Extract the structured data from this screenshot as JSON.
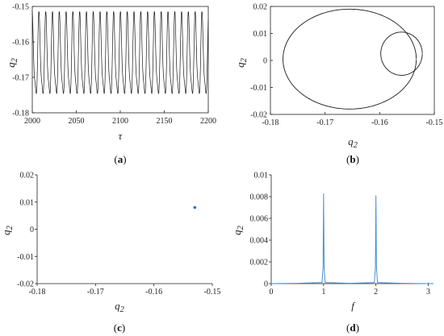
{
  "chart_data": [
    {
      "type": "line",
      "panel": "a",
      "caption": {
        "open": "(",
        "letter": "a",
        "close": ")"
      },
      "xlabel": "τ",
      "ylabel": {
        "main": "q",
        "sub": "2"
      },
      "xlim": [
        2000,
        2200
      ],
      "ylim": [
        -0.18,
        -0.15
      ],
      "xticks": [
        "2000",
        "2050",
        "2100",
        "2150",
        "2200"
      ],
      "yticks": [
        "-0.15",
        "-0.16",
        "-0.17",
        "-0.18"
      ],
      "series": [
        {
          "color": "#1a1a1a",
          "description_values": {
            "period": 7.72,
            "max": -0.1515,
            "min": -0.1782,
            "secondary_max": -0.1562,
            "secondary_min": -0.1665
          },
          "x_start": 2000,
          "x_end": 2200
        }
      ]
    },
    {
      "type": "line",
      "panel": "b",
      "caption": {
        "open": "(",
        "letter": "b",
        "close": ")"
      },
      "xlabel": {
        "main": "q",
        "sub": "2"
      },
      "ylabel": {
        "main": "q",
        "sub": "2"
      },
      "xlim": [
        -0.18,
        -0.15
      ],
      "ylim": [
        -0.02,
        0.02
      ],
      "xticks": [
        "-0.18",
        "-0.17",
        "-0.16",
        "-0.15"
      ],
      "yticks": [
        "0.02",
        "0.01",
        "0",
        "-0.01",
        "-0.02"
      ],
      "series": [
        {
          "color": "#1a1a1a",
          "loops": [
            {
              "cx": -0.1655,
              "cy": 0.0005,
              "rx": 0.0122,
              "ry": 0.0185
            },
            {
              "cx": -0.156,
              "cy": 0.0025,
              "rx": 0.0038,
              "ry": 0.008
            }
          ]
        }
      ]
    },
    {
      "type": "scatter",
      "panel": "c",
      "caption": {
        "open": "(",
        "letter": "c",
        "close": ")"
      },
      "xlabel": {
        "main": "q",
        "sub": "2"
      },
      "ylabel": {
        "main": "q",
        "sub": "2"
      },
      "xlim": [
        -0.18,
        -0.15
      ],
      "ylim": [
        -0.02,
        0.02
      ],
      "xticks": [
        "-0.18",
        "-0.17",
        "-0.16",
        "-0.15"
      ],
      "yticks": [
        "0.02",
        "0.01",
        "0",
        "-0.01",
        "-0.02"
      ],
      "series": [
        {
          "color": "#2f6fd0",
          "x": [
            -0.153
          ],
          "y": [
            0.008
          ]
        }
      ]
    },
    {
      "type": "line",
      "panel": "d",
      "caption": {
        "open": "(",
        "letter": "d",
        "close": ")"
      },
      "xlabel": "f",
      "ylabel": {
        "main": "q",
        "sub": "2"
      },
      "xlim": [
        0,
        3.1
      ],
      "ylim": [
        0,
        0.01
      ],
      "xticks": [
        "0",
        "1",
        "2",
        "3"
      ],
      "yticks": [
        "0.01",
        "0.008",
        "0.006",
        "0.004",
        "0.002",
        "0"
      ],
      "series": [
        {
          "color": "#4a8fd0",
          "x": [
            0,
            0.5,
            0.97,
            0.99,
            1.0,
            1.01,
            1.03,
            1.5,
            1.97,
            1.99,
            2.0,
            2.01,
            2.03,
            2.5,
            2.99,
            3.0,
            3.01,
            3.1
          ],
          "y": [
            0,
            3e-05,
            0.0001,
            0.0015,
            0.0083,
            0.0015,
            0.0001,
            3e-05,
            0.0001,
            0.0015,
            0.0081,
            0.0015,
            0.0001,
            3e-05,
            0,
            5e-05,
            0,
            0
          ]
        }
      ]
    }
  ]
}
